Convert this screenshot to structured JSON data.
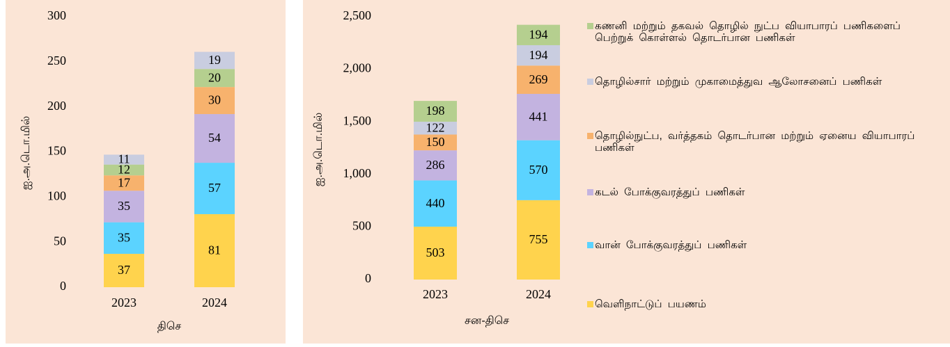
{
  "chart_data": [
    {
      "type": "bar",
      "stacked": true,
      "y_label": "ஐ.அ.டொ.மில்",
      "x_label": "திசெ",
      "categories": [
        "2023",
        "2024"
      ],
      "ylim": [
        0,
        300
      ],
      "yticks": [
        0,
        50,
        100,
        150,
        200,
        250,
        300
      ],
      "series": [
        {
          "color": "#ffd34d",
          "values": [
            37,
            81
          ]
        },
        {
          "color": "#5bd3ff",
          "values": [
            35,
            57
          ]
        },
        {
          "color": "#c3b3e0",
          "values": [
            35,
            54
          ]
        },
        {
          "color": "#f7b26d",
          "values": [
            17,
            30
          ]
        },
        {
          "color": "#b5cf8f",
          "values": [
            12,
            20
          ]
        },
        {
          "color": "#c9cde0",
          "values": [
            11,
            19
          ]
        }
      ]
    },
    {
      "type": "bar",
      "stacked": true,
      "y_label": "ஐ.அ.டொ.மில்",
      "x_label": "சன-திசெ",
      "categories": [
        "2023",
        "2024"
      ],
      "ylim": [
        0,
        2500
      ],
      "yticks": [
        0,
        500,
        {
          "value": 1000,
          "label": "1,000"
        },
        {
          "value": 1500,
          "label": "1,500"
        },
        {
          "value": 2000,
          "label": "2,000"
        },
        {
          "value": 2500,
          "label": "2,500"
        }
      ],
      "series": [
        {
          "name": "வெளிநாட்டுப் பயணம்",
          "color": "#ffd34d",
          "values": [
            503,
            755
          ]
        },
        {
          "name": "வான் போக்குவரத்துப் பணிகள்",
          "color": "#5bd3ff",
          "values": [
            440,
            570
          ]
        },
        {
          "name": "கடல் போக்குவரத்துப் பணிகள்",
          "color": "#c3b3e0",
          "values": [
            286,
            441
          ]
        },
        {
          "name": "தொழில்நுட்ப, வர்த்தகம் தொடர்பான மற்றும் ஏனைய வியாபாரப் பணிகள்",
          "color": "#f7b26d",
          "values": [
            150,
            269
          ]
        },
        {
          "name": "தொழில்சார் மற்றும் முகாமைத்துவ ஆலோசனைப் பணிகள்",
          "color": "#c9cde0",
          "values": [
            122,
            194
          ]
        },
        {
          "name": "கணனி மற்றும் தகவல் தொழில் நுட்ப வியாபாரப் பணிகளைப் பெற்றுக் கொள்ளல் தொடர்பான பணிகள்",
          "color": "#b5cf8f",
          "values": [
            198,
            194
          ]
        }
      ]
    }
  ]
}
